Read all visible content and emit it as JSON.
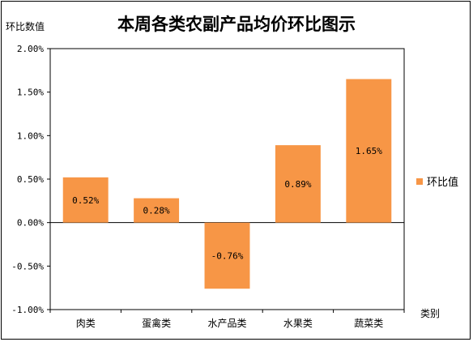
{
  "chart_data": {
    "type": "bar",
    "title": "本周各类农副产品均价环比图示",
    "ylabel": "环比数值",
    "xlabel": "类别",
    "categories": [
      "肉类",
      "蛋禽类",
      "水产品类",
      "水果类",
      "蔬菜类"
    ],
    "series": [
      {
        "name": "环比值",
        "values": [
          0.52,
          0.28,
          -0.76,
          0.89,
          1.65
        ],
        "data_labels": [
          "0.52%",
          "0.28%",
          "-0.76%",
          "0.89%",
          "1.65%"
        ]
      }
    ],
    "ylim": [
      -1.0,
      2.0
    ],
    "y_ticks": [
      2.0,
      1.5,
      1.0,
      0.5,
      0.0,
      -0.5,
      -1.0
    ],
    "y_tick_labels": [
      "2.00%",
      "1.50%",
      "1.00%",
      "0.50%",
      "0.00%",
      "-0.50%",
      "-1.00%"
    ],
    "grid": false,
    "legend_position": "right",
    "colors": {
      "bar": "#F79646",
      "axis": "#000000",
      "plot_border": "#000000"
    }
  }
}
